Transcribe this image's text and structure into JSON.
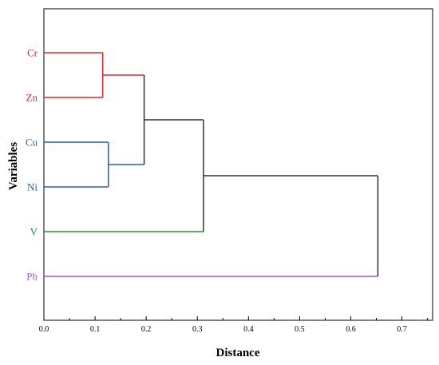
{
  "chart_data": {
    "type": "dendrogram",
    "orientation": "horizontal",
    "xlabel": "Distance",
    "ylabel": "Variables",
    "xlim": [
      0,
      0.76
    ],
    "x_ticks": [
      "0.0",
      "0.1",
      "0.2",
      "0.3",
      "0.4",
      "0.5",
      "0.6",
      "0.7"
    ],
    "x_tick_values": [
      0,
      0.1,
      0.2,
      0.3,
      0.4,
      0.5,
      0.6,
      0.7
    ],
    "grid": false,
    "leaves": [
      {
        "label": "Cr",
        "color": "#e8262b"
      },
      {
        "label": "Zn",
        "color": "#e8262b"
      },
      {
        "label": "Cu",
        "color": "#1f5fc9"
      },
      {
        "label": "Ni",
        "color": "#1f5fc9"
      },
      {
        "label": "V",
        "color": "#2e8b3a"
      },
      {
        "label": "Pb",
        "color": "#a855d6"
      }
    ],
    "merges": [
      {
        "left": "Cr",
        "right": "Zn",
        "distance": 0.115,
        "color": "#e8262b"
      },
      {
        "left": "Cu",
        "right": "Ni",
        "distance": 0.126,
        "color": "#1f5fc9"
      },
      {
        "left": "Cr+Zn",
        "right": "Cu+Ni",
        "distance": 0.196,
        "color": "#333333"
      },
      {
        "left": "Cr+Zn+Cu+Ni",
        "right": "V",
        "distance": 0.312,
        "color": "#333333"
      },
      {
        "left": "Cr+Zn+Cu+Ni+V",
        "right": "Pb",
        "distance": 0.653,
        "color": "#333333"
      }
    ]
  }
}
